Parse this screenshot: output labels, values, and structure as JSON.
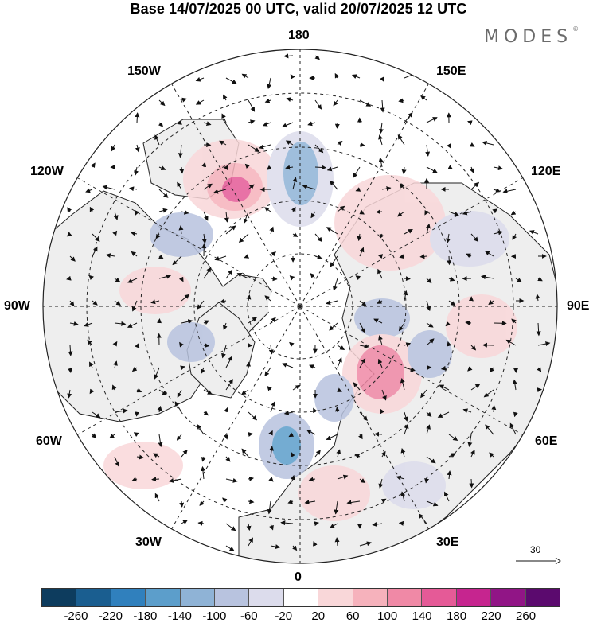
{
  "title": "Base 14/07/2025 00 UTC, valid 20/07/2025 12 UTC",
  "brand": {
    "name": "MODES",
    "mark": "©"
  },
  "longitude_labels": {
    "top": "180",
    "bottom": "0",
    "left": "90W",
    "right": "90E",
    "upper_left_1": "150W",
    "upper_left_2": "120W",
    "upper_right_1": "150E",
    "upper_right_2": "120E",
    "lower_left_1": "60W",
    "lower_left_2": "30W",
    "lower_right_1": "60E",
    "lower_right_2": "30E"
  },
  "vector_scale": {
    "label": "30"
  },
  "colorbar": {
    "colors": [
      "#0d3c5e",
      "#1a5e90",
      "#3080bd",
      "#5c9ecb",
      "#8fb3d6",
      "#b8c3df",
      "#dcdcec",
      "#ffffff",
      "#f9d7d9",
      "#f6b2bc",
      "#f089a6",
      "#e55a97",
      "#c6258f",
      "#911586",
      "#5b0a6e"
    ],
    "ticks": [
      "-260",
      "-220",
      "-180",
      "-140",
      "-100",
      "-60",
      "-20",
      "20",
      "60",
      "100",
      "140",
      "180",
      "220",
      "260"
    ]
  },
  "map": {
    "projection": "north-polar-stereographic",
    "field": "anomaly with wind vectors",
    "colors": {
      "land": "#eeeeee",
      "ocean": "#ffffff",
      "coast": "#222222",
      "grid": "#222222"
    }
  }
}
